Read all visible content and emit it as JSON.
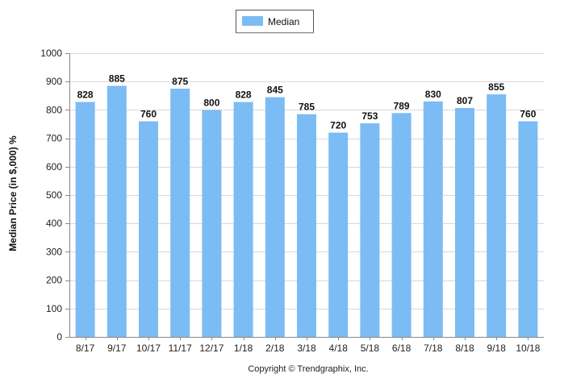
{
  "chart_data": {
    "type": "bar",
    "title": "",
    "xlabel": "",
    "ylabel": "Median Price (in $,000) %",
    "ylim": [
      0,
      1000
    ],
    "yticks": [
      0,
      100,
      200,
      300,
      400,
      500,
      600,
      700,
      800,
      900,
      1000
    ],
    "grid": true,
    "legend_position": "top-center",
    "categories": [
      "8/17",
      "9/17",
      "10/17",
      "11/17",
      "12/17",
      "1/18",
      "2/18",
      "3/18",
      "4/18",
      "5/18",
      "6/18",
      "7/18",
      "8/18",
      "9/18",
      "10/18"
    ],
    "series": [
      {
        "name": "Median",
        "color": "#7cbcf4",
        "values": [
          828,
          885,
          760,
          875,
          800,
          828,
          845,
          785,
          720,
          753,
          789,
          830,
          807,
          855,
          760
        ]
      }
    ]
  },
  "footer": {
    "copyright": "Copyright © Trendgraphix, Inc."
  }
}
